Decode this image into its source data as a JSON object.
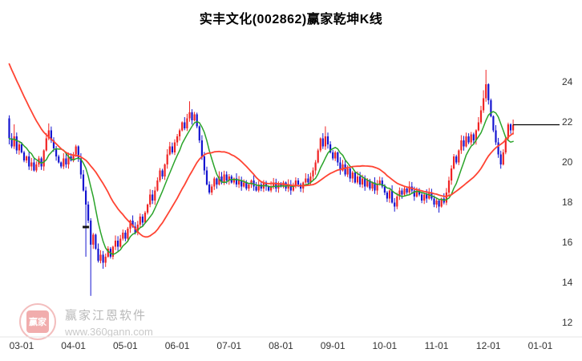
{
  "colors": {
    "up": "#f02424",
    "down": "#1515d0",
    "ma_red": "#ff4433",
    "ma_green": "#2aa42a",
    "price_line": "#000000",
    "axis_text": "#333333"
  },
  "watermark": {
    "logo_text": "赢家",
    "line1": "赢家江恩软件",
    "line2": "www.360gann.com"
  },
  "chart_data": {
    "type": "candlestick",
    "title": "实丰文化(002862)赢家乾坤K线",
    "y_ticks": [
      24,
      22,
      20,
      18,
      16,
      14,
      12
    ],
    "y_range": [
      11.3,
      26.3
    ],
    "x_count": 222,
    "x_ticks": [
      {
        "label": "03-01",
        "i": 5
      },
      {
        "label": "04-01",
        "i": 26
      },
      {
        "label": "05-01",
        "i": 47
      },
      {
        "label": "06-01",
        "i": 68
      },
      {
        "label": "07-01",
        "i": 89
      },
      {
        "label": "08-01",
        "i": 110
      },
      {
        "label": "09-01",
        "i": 131
      },
      {
        "label": "10-01",
        "i": 152
      },
      {
        "label": "11-01",
        "i": 173
      },
      {
        "label": "12-01",
        "i": 194
      },
      {
        "label": "01-01",
        "i": 215
      }
    ],
    "first_open": 22.2,
    "closes": [
      21.2,
      20.8,
      21.3,
      20.6,
      20.9,
      20.5,
      20.1,
      20.3,
      19.8,
      20.0,
      19.6,
      19.9,
      20.2,
      19.8,
      20.6,
      21.2,
      21.6,
      21.1,
      20.7,
      20.3,
      20.0,
      19.8,
      20.2,
      19.9,
      20.3,
      20.1,
      20.4,
      20.8,
      20.2,
      19.4,
      18.6,
      17.9,
      17.1,
      15.9,
      16.4,
      15.7,
      15.1,
      15.4,
      15.0,
      15.3,
      15.7,
      15.3,
      15.8,
      16.1,
      15.8,
      16.2,
      16.5,
      16.2,
      16.7,
      17.1,
      16.8,
      16.5,
      16.9,
      17.3,
      17.0,
      17.5,
      17.9,
      18.4,
      18.1,
      18.6,
      19.1,
      19.6,
      19.3,
      19.9,
      20.4,
      20.8,
      20.5,
      21.0,
      21.3,
      21.6,
      22.0,
      21.7,
      22.2,
      22.5,
      22.1,
      22.4,
      21.8,
      21.1,
      20.3,
      19.6,
      18.9,
      18.5,
      18.8,
      19.2,
      18.9,
      19.3,
      19.0,
      19.4,
      19.1,
      19.3,
      19.0,
      19.2,
      18.9,
      19.1,
      18.8,
      19.0,
      18.7,
      18.9,
      19.1,
      18.8,
      18.6,
      18.9,
      18.7,
      19.0,
      18.8,
      18.6,
      18.8,
      19.0,
      18.7,
      18.9,
      18.8,
      19.0,
      18.7,
      18.9,
      18.6,
      18.8,
      19.1,
      18.9,
      18.7,
      19.0,
      19.2,
      19.0,
      19.3,
      19.6,
      20.0,
      20.6,
      21.2,
      20.8,
      21.3,
      20.9,
      20.5,
      20.2,
      20.5,
      20.0,
      19.6,
      19.9,
      19.4,
      19.7,
      19.2,
      19.5,
      19.0,
      19.3,
      18.9,
      19.2,
      18.8,
      19.1,
      18.7,
      19.0,
      18.6,
      18.9,
      19.1,
      18.8,
      18.5,
      18.2,
      18.6,
      18.0,
      17.8,
      18.3,
      18.6,
      18.4,
      18.7,
      18.5,
      18.8,
      18.6,
      18.3,
      18.6,
      18.4,
      18.1,
      18.4,
      18.2,
      18.5,
      18.2,
      17.9,
      18.1,
      17.8,
      18.2,
      18.0,
      18.5,
      19.1,
      19.7,
      20.3,
      20.0,
      20.6,
      21.1,
      20.8,
      21.3,
      21.0,
      21.4,
      21.1,
      21.6,
      22.0,
      22.6,
      23.2,
      23.9,
      23.1,
      22.3,
      21.6,
      21.0,
      20.4,
      19.9,
      20.5,
      21.2,
      21.9,
      21.6,
      21.88
    ],
    "wick_overrides": [
      {
        "i": 0,
        "high": 22.35,
        "low": 20.9
      },
      {
        "i": 2,
        "high": 21.9
      },
      {
        "i": 16,
        "high": 21.95
      },
      {
        "i": 31,
        "low": 15.3
      },
      {
        "i": 33,
        "low": 13.35
      },
      {
        "i": 38,
        "low": 14.7
      },
      {
        "i": 73,
        "high": 23.05
      },
      {
        "i": 128,
        "high": 21.8
      },
      {
        "i": 156,
        "low": 17.55
      },
      {
        "i": 174,
        "low": 17.5
      },
      {
        "i": 192,
        "high": 23.6
      },
      {
        "i": 193,
        "high": 24.62
      },
      {
        "i": 194,
        "high": 23.95
      }
    ],
    "ma_lines": [
      {
        "name": "short-ma",
        "period": 8,
        "color_key": "ma_green"
      },
      {
        "name": "long-ma",
        "period": 25,
        "color_key": "ma_red",
        "seed_from": 28.4,
        "seed_to": 22.0
      }
    ],
    "current_price_line": 21.88,
    "marker": {
      "i": 31,
      "price": 16.78
    }
  }
}
